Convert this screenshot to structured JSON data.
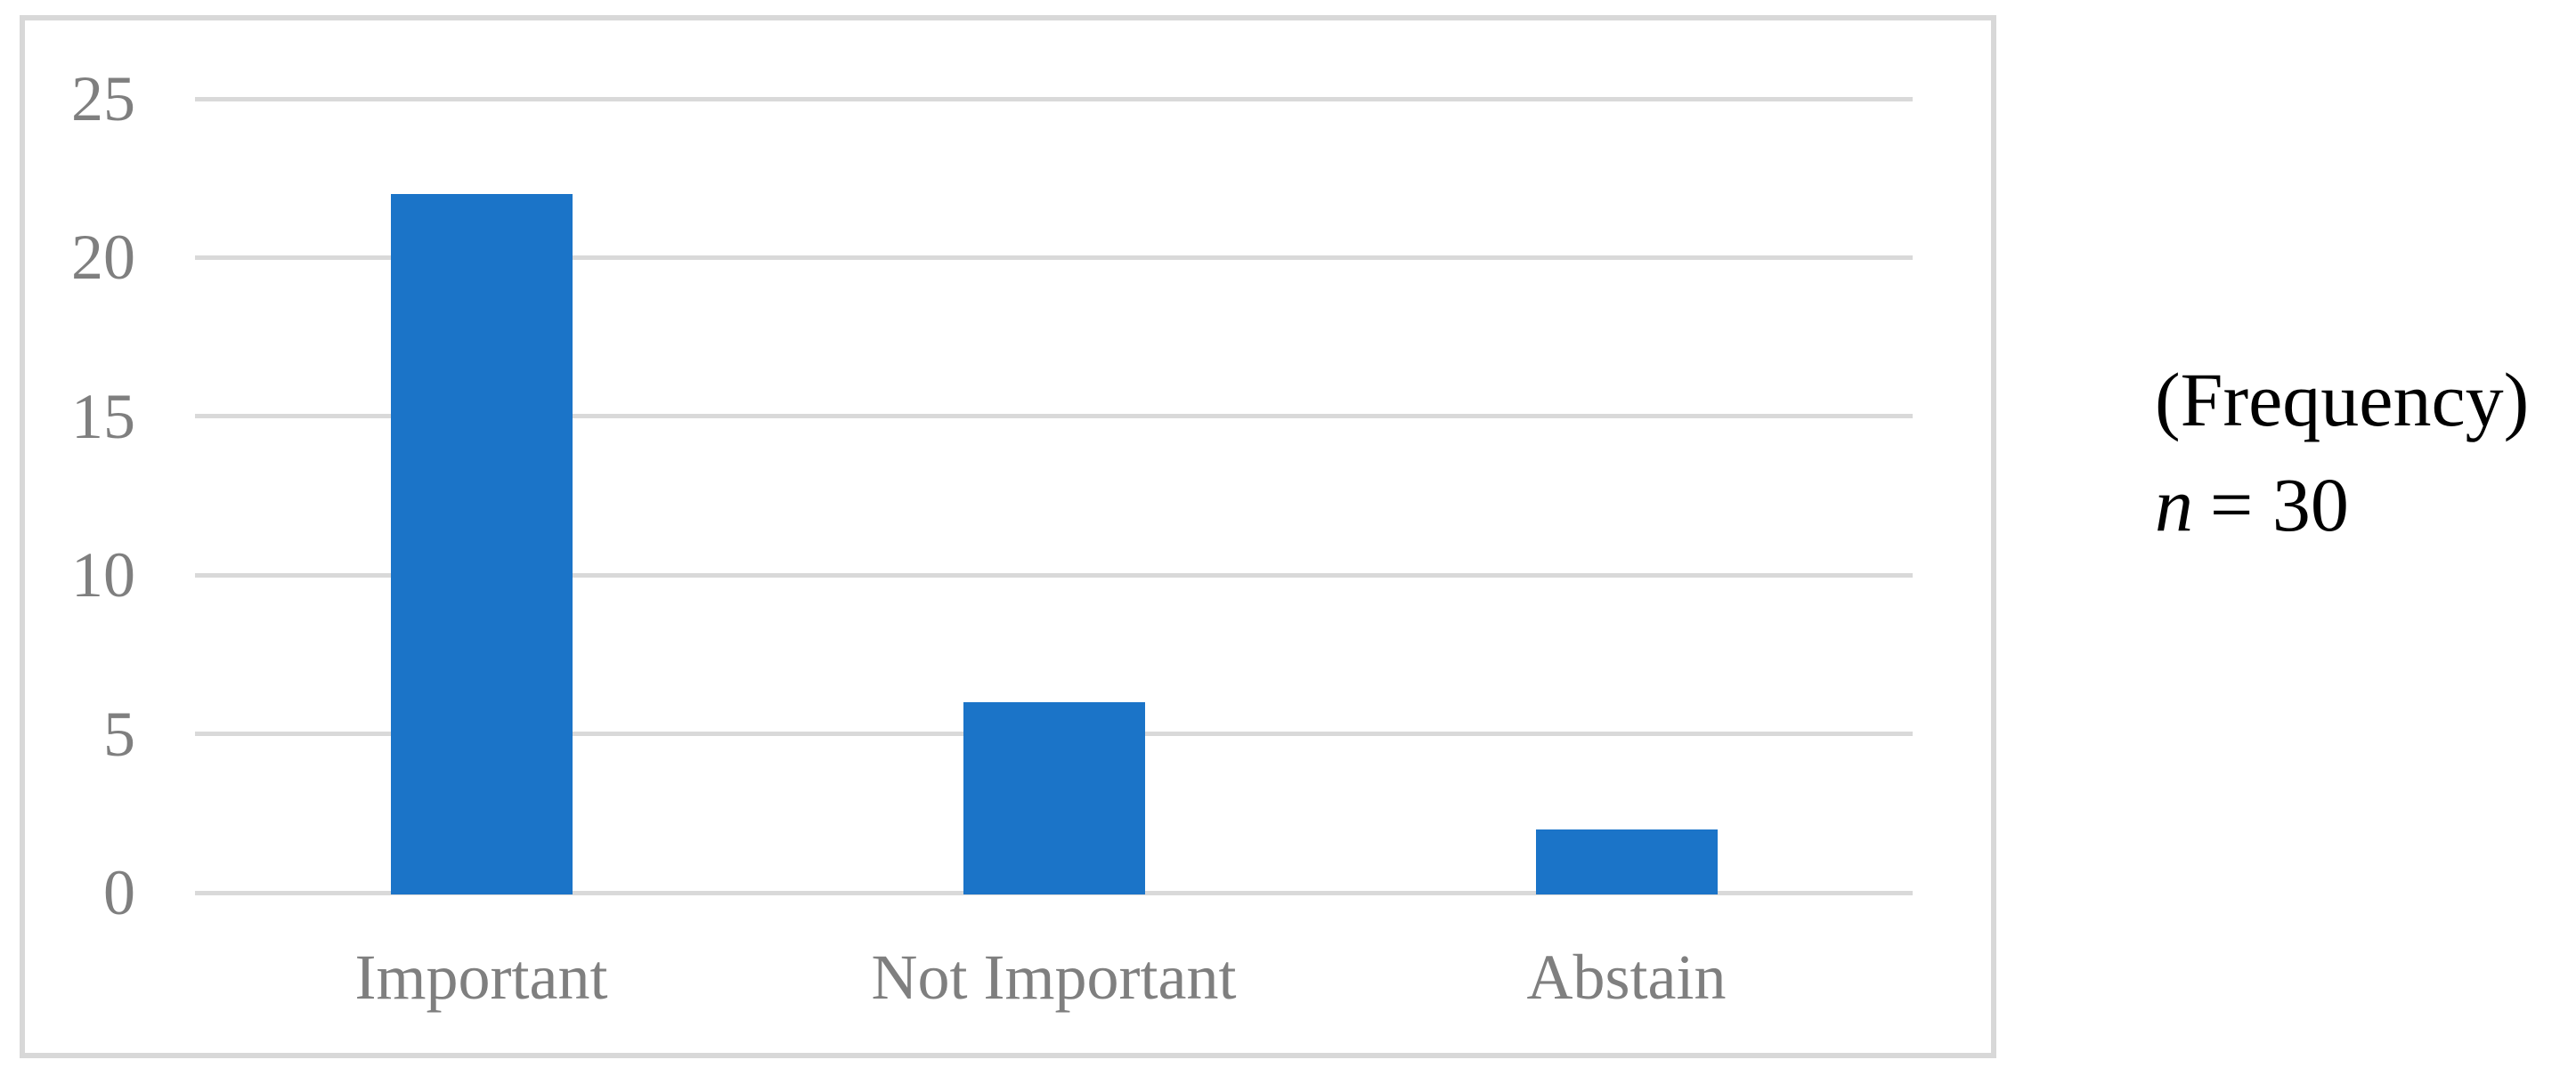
{
  "chart_data": {
    "type": "bar",
    "categories": [
      "Important",
      "Not Important",
      "Abstain"
    ],
    "values": [
      22,
      6,
      2
    ],
    "series_name": "Frequency",
    "title": "",
    "xlabel": "",
    "ylabel": "(Frequency)",
    "ylim": [
      0,
      25
    ],
    "yticks": [
      0,
      5,
      10,
      15,
      20,
      25
    ],
    "grid": "horizontal",
    "legend_position": "none",
    "bar_color": "#1B74C8"
  },
  "annotation": {
    "line1": "(Frequency)",
    "line2_var": "n",
    "line2_rest": "= 30"
  },
  "colors": {
    "bar": "#1B74C8",
    "gridline": "#D9D9D9",
    "frame_border": "#D8D8D8",
    "axis_text": "#7F7F7F",
    "annotation_text": "#000000",
    "background": "#FFFFFF"
  }
}
